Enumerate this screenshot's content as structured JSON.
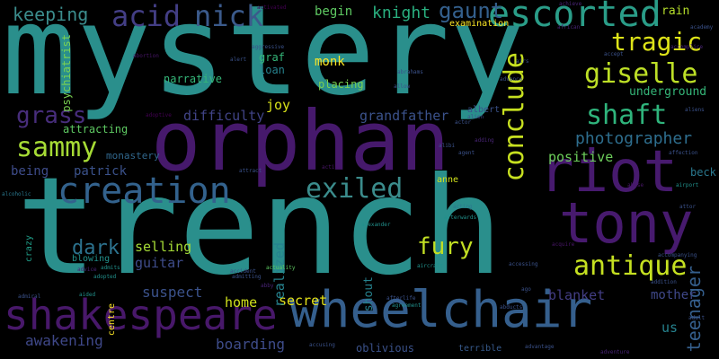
{
  "words": [
    {
      "text": "mystery",
      "color": "#2a8f8c"
    },
    {
      "text": "trench",
      "color": "#2a8f8c"
    },
    {
      "text": "orphan",
      "color": "#46196c"
    },
    {
      "text": "wheelchair",
      "color": "#355f8d"
    },
    {
      "text": "shakespeare",
      "color": "#48186a"
    },
    {
      "text": "creation",
      "color": "#33628d"
    },
    {
      "text": "riot",
      "color": "#471a6e"
    },
    {
      "text": "tony",
      "color": "#471a6e"
    },
    {
      "text": "escorted",
      "color": "#2a9d88"
    },
    {
      "text": "acid",
      "color": "#433e85"
    },
    {
      "text": "nick",
      "color": "#3b5a8b"
    },
    {
      "text": "sammy",
      "color": "#a6db35"
    },
    {
      "text": "exiled",
      "color": "#3b8c8c"
    },
    {
      "text": "conclude",
      "color": "#c7e020"
    },
    {
      "text": "antique",
      "color": "#c5e021"
    },
    {
      "text": "giselle",
      "color": "#bddf26"
    },
    {
      "text": "shaft",
      "color": "#2fb47c"
    },
    {
      "text": "tragic",
      "color": "#dde318"
    },
    {
      "text": "photographer",
      "color": "#2e6e8e"
    },
    {
      "text": "gaunt",
      "color": "#34608d"
    },
    {
      "text": "grass",
      "color": "#472d7b"
    },
    {
      "text": "fury",
      "color": "#c2df23"
    },
    {
      "text": "keeping",
      "color": "#3b8c8c"
    },
    {
      "text": "knight",
      "color": "#29af7f"
    },
    {
      "text": "dark",
      "color": "#2c728e"
    },
    {
      "text": "teenager",
      "color": "#355f8d"
    },
    {
      "text": "awakening",
      "color": "#3f4889"
    },
    {
      "text": "suspect",
      "color": "#3b528b"
    },
    {
      "text": "blanket",
      "color": "#433e85"
    },
    {
      "text": "boarding",
      "color": "#3e4c8a"
    },
    {
      "text": "selling",
      "color": "#a5db36"
    },
    {
      "text": "guitar",
      "color": "#3e4c8a"
    },
    {
      "text": "mother",
      "color": "#3f4889"
    },
    {
      "text": "secret",
      "color": "#e6e419"
    },
    {
      "text": "home",
      "color": "#d0e11c"
    },
    {
      "text": "underground",
      "color": "#35b779"
    },
    {
      "text": "positive",
      "color": "#6ccd5a"
    },
    {
      "text": "grandfather",
      "color": "#3b528b"
    },
    {
      "text": "difficulty",
      "color": "#414487"
    },
    {
      "text": "joy",
      "color": "#d8e219"
    },
    {
      "text": "monk",
      "color": "#fde725"
    },
    {
      "text": "patrick",
      "color": "#3b528b"
    },
    {
      "text": "being",
      "color": "#3e4c8a"
    },
    {
      "text": "realized",
      "color": "#26828e"
    },
    {
      "text": "oblivious",
      "color": "#3b528b"
    },
    {
      "text": "terrible",
      "color": "#375a8c"
    },
    {
      "text": "begin",
      "color": "#5ec962"
    },
    {
      "text": "rain",
      "color": "#b5de2b"
    },
    {
      "text": "attracting",
      "color": "#5ec962"
    },
    {
      "text": "monastery",
      "color": "#31688e"
    },
    {
      "text": "narrative",
      "color": "#35b779"
    },
    {
      "text": "placing",
      "color": "#7ad151"
    },
    {
      "text": "loan",
      "color": "#26828e"
    },
    {
      "text": "graf",
      "color": "#35b779"
    },
    {
      "text": "anne",
      "color": "#d2e21b"
    },
    {
      "text": "shout",
      "color": "#26828e"
    },
    {
      "text": "us",
      "color": "#26828e"
    },
    {
      "text": "beck",
      "color": "#2a788e"
    },
    {
      "text": "psychiatrist",
      "color": "#7ad151"
    },
    {
      "text": "examination",
      "color": "#fde725"
    },
    {
      "text": "albert",
      "color": "#3b528b"
    },
    {
      "text": "crazy",
      "color": "#1f9e89"
    },
    {
      "text": "centre",
      "color": "#fde725"
    },
    {
      "text": "blowing",
      "color": "#21918c"
    },
    {
      "text": "advice",
      "color": "#482475"
    },
    {
      "text": "accident",
      "color": "#3b528b"
    },
    {
      "text": "actuality",
      "color": "#5ec962"
    },
    {
      "text": "admitting",
      "color": "#3b528b"
    },
    {
      "text": "abby",
      "color": "#482475"
    },
    {
      "text": "afterlife",
      "color": "#3b528b"
    },
    {
      "text": "alcoholic",
      "color": "#2a788e"
    },
    {
      "text": "abducts",
      "color": "#3b528b"
    },
    {
      "text": "activated",
      "color": "#440154"
    },
    {
      "text": "achieve",
      "color": "#482475"
    },
    {
      "text": "accompanying",
      "color": "#3b528b"
    },
    {
      "text": "aggressive",
      "color": "#3b528b"
    },
    {
      "text": "alexander",
      "color": "#21918c"
    },
    {
      "text": "active",
      "color": "#481668"
    },
    {
      "text": "airport",
      "color": "#21918c"
    },
    {
      "text": "acquire",
      "color": "#481668"
    },
    {
      "text": "advance",
      "color": "#3b528b"
    },
    {
      "text": "adding",
      "color": "#482475"
    },
    {
      "text": "agreement",
      "color": "#21918c"
    },
    {
      "text": "accusing",
      "color": "#3b528b"
    },
    {
      "text": "aircraft",
      "color": "#21918c"
    },
    {
      "text": "aided",
      "color": "#21918c"
    },
    {
      "text": "admiral",
      "color": "#3b528b"
    },
    {
      "text": "acting",
      "color": "#2a788e"
    },
    {
      "text": "agent",
      "color": "#3b528b"
    },
    {
      "text": "adopted",
      "color": "#21918c"
    },
    {
      "text": "afterwards",
      "color": "#21918c"
    },
    {
      "text": "african",
      "color": "#482475"
    },
    {
      "text": "accept",
      "color": "#3b528b"
    },
    {
      "text": "abuse",
      "color": "#481668"
    },
    {
      "text": "alert",
      "color": "#3b528b"
    },
    {
      "text": "adventure",
      "color": "#482475"
    },
    {
      "text": "advantage",
      "color": "#3b528b"
    },
    {
      "text": "admits",
      "color": "#21918c"
    },
    {
      "text": "accessing",
      "color": "#3b528b"
    },
    {
      "text": "addition",
      "color": "#3b528b"
    },
    {
      "text": "attract",
      "color": "#3b528b"
    },
    {
      "text": "aliens",
      "color": "#3b528b"
    },
    {
      "text": "abortion",
      "color": "#481668"
    },
    {
      "text": "academy",
      "color": "#3b528b"
    },
    {
      "text": "accomplice",
      "color": "#482475"
    },
    {
      "text": "affection",
      "color": "#3b528b"
    },
    {
      "text": "adoptive",
      "color": "#440154"
    },
    {
      "text": "ago",
      "color": "#3b528b"
    },
    {
      "text": "airs",
      "color": "#3b528b"
    },
    {
      "text": "abrahams",
      "color": "#3b528b"
    },
    {
      "text": "alien",
      "color": "#3b528b"
    },
    {
      "text": "actor",
      "color": "#3b528b"
    },
    {
      "text": "allow",
      "color": "#3b528b"
    },
    {
      "text": "adult",
      "color": "#3b528b"
    },
    {
      "text": "alibi",
      "color": "#3b528b"
    },
    {
      "text": "attor",
      "color": "#3b528b"
    }
  ]
}
